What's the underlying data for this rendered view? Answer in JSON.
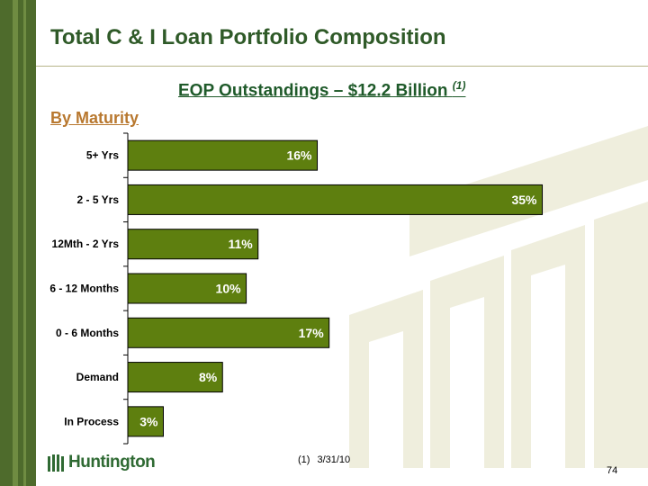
{
  "slide": {
    "title": "Total C & I Loan Portfolio Composition",
    "subtitle": "EOP Outstandings – $12.2 Billion ",
    "subtitle_note": "(1)",
    "section_label": "By Maturity",
    "footnote_marker": "(1)",
    "footnote_text": "3/31/10",
    "logo_text": "Huntington",
    "page_number": "74"
  },
  "colors": {
    "bar_fill": "#5e7f0f",
    "title": "#2f5a28",
    "subtitle": "#1f5a2a",
    "section_label": "#b8782f",
    "sidebar": "#4e6b2c"
  },
  "chart_data": {
    "type": "bar",
    "orientation": "horizontal",
    "categories": [
      "5+ Yrs",
      "2 - 5 Yrs",
      "12Mth - 2 Yrs",
      "6 - 12 Months",
      "0 - 6 Months",
      "Demand",
      "In Process"
    ],
    "values": [
      16,
      35,
      11,
      10,
      17,
      8,
      3
    ],
    "value_labels": [
      "16%",
      "35%",
      "11%",
      "10%",
      "17%",
      "8%",
      "3%"
    ],
    "title": "",
    "xlabel": "",
    "ylabel": "",
    "xlim": [
      0,
      38
    ],
    "grid": false,
    "legend": "none"
  }
}
